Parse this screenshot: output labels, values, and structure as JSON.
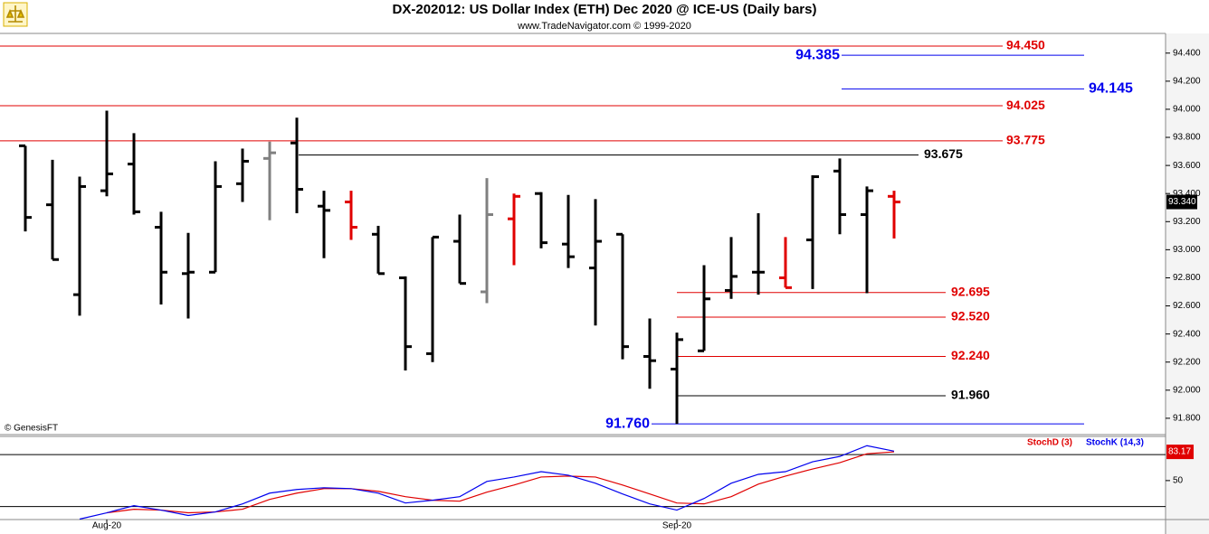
{
  "header": {
    "title": "DX-202012:  US Dollar Index (ETH) Dec 2020 @ ICE-US  (Daily bars)",
    "subtitle": "www.TradeNavigator.com © 1999-2020",
    "watermark": "© GenesisFT"
  },
  "chart_data": [
    {
      "type": "ohlc",
      "categories": [
        null,
        null,
        null,
        "Aug-20",
        null,
        null,
        null,
        null,
        null,
        null,
        null,
        null,
        null,
        null,
        null,
        null,
        null,
        null,
        null,
        null,
        null,
        null,
        null,
        null,
        "Sep-20",
        null,
        null,
        null,
        null,
        null,
        null,
        null,
        null
      ],
      "open": [
        93.74,
        93.32,
        92.68,
        93.42,
        93.61,
        93.16,
        92.83,
        92.84,
        93.47,
        93.65,
        93.76,
        93.31,
        93.34,
        93.11,
        92.8,
        92.26,
        93.06,
        92.7,
        93.22,
        93.4,
        93.04,
        92.87,
        93.11,
        92.24,
        92.15,
        92.28,
        92.71,
        92.84,
        92.8,
        93.07,
        93.56,
        93.25,
        93.38
      ],
      "high": [
        93.74,
        93.64,
        93.52,
        93.99,
        93.83,
        93.27,
        93.12,
        93.63,
        93.72,
        93.77,
        93.94,
        93.42,
        93.42,
        93.17,
        92.81,
        93.09,
        93.25,
        93.51,
        93.4,
        93.41,
        93.39,
        93.36,
        93.11,
        92.51,
        92.41,
        92.89,
        93.09,
        93.26,
        93.09,
        93.53,
        93.65,
        93.45,
        93.42
      ],
      "low": [
        93.13,
        92.93,
        92.53,
        93.38,
        93.25,
        92.61,
        92.51,
        92.84,
        93.34,
        93.21,
        93.26,
        92.94,
        93.07,
        92.83,
        92.14,
        92.2,
        92.76,
        92.62,
        92.89,
        93.01,
        92.87,
        92.46,
        92.22,
        92.01,
        91.76,
        92.28,
        92.65,
        92.68,
        92.73,
        92.72,
        93.11,
        92.69,
        93.08
      ],
      "close": [
        93.23,
        92.93,
        93.45,
        93.54,
        93.27,
        92.84,
        92.84,
        93.45,
        93.63,
        93.69,
        93.43,
        93.28,
        93.16,
        92.83,
        92.31,
        93.09,
        92.76,
        93.25,
        93.38,
        93.05,
        92.95,
        93.06,
        92.31,
        92.21,
        92.36,
        92.65,
        92.81,
        92.84,
        92.73,
        93.52,
        93.25,
        93.42,
        93.34
      ],
      "bar_colors": [
        "#000000",
        "#000000",
        "#000000",
        "#000000",
        "#000000",
        "#000000",
        "#000000",
        "#000000",
        "#000000",
        "#808080",
        "#000000",
        "#000000",
        "#e00000",
        "#000000",
        "#000000",
        "#000000",
        "#000000",
        "#808080",
        "#e00000",
        "#000000",
        "#000000",
        "#000000",
        "#000000",
        "#000000",
        "#000000",
        "#000000",
        "#000000",
        "#000000",
        "#e00000",
        "#000000",
        "#000000",
        "#000000",
        "#e00000"
      ],
      "ylim": [
        91.69,
        94.54
      ],
      "yticks": [
        {
          "value": 91.8,
          "label": "91.800"
        },
        {
          "value": 92.0,
          "label": "92.000"
        },
        {
          "value": 92.2,
          "label": "92.200"
        },
        {
          "value": 92.4,
          "label": "92.400"
        },
        {
          "value": 92.6,
          "label": "92.600"
        },
        {
          "value": 92.8,
          "label": "92.800"
        },
        {
          "value": 93.0,
          "label": "93.000"
        },
        {
          "value": 93.2,
          "label": "93.200"
        },
        {
          "value": 93.4,
          "label": "93.400"
        },
        {
          "value": 93.6,
          "label": "93.600"
        },
        {
          "value": 93.8,
          "label": "93.800"
        },
        {
          "value": 94.0,
          "label": "94.000"
        },
        {
          "value": 94.2,
          "label": "94.200"
        },
        {
          "value": 94.4,
          "label": "94.400"
        }
      ],
      "levels": [
        {
          "value": 94.45,
          "label": "94.450",
          "color": "#e00000"
        },
        {
          "value": 94.385,
          "label": "94.385",
          "color": "#0000ee"
        },
        {
          "value": 94.145,
          "label": "94.145",
          "color": "#0000ee"
        },
        {
          "value": 94.025,
          "label": "94.025",
          "color": "#e00000"
        },
        {
          "value": 93.775,
          "label": "93.775",
          "color": "#e00000"
        },
        {
          "value": 93.675,
          "label": "93.675",
          "color": "#000000"
        },
        {
          "value": 92.695,
          "label": "92.695",
          "color": "#e00000"
        },
        {
          "value": 92.52,
          "label": "92.520",
          "color": "#e00000"
        },
        {
          "value": 92.24,
          "label": "92.240",
          "color": "#e00000"
        },
        {
          "value": 91.96,
          "label": "91.960",
          "color": "#000000"
        },
        {
          "value": 91.76,
          "label": "91.760",
          "color": "#0000ee"
        }
      ],
      "last": {
        "value": 93.34,
        "label": "93.340"
      }
    },
    {
      "type": "line",
      "series": [
        {
          "name": "StochD (3)",
          "color": "#e00000",
          "values": [
            null,
            null,
            null,
            12.8,
            16.9,
            15.9,
            12.8,
            13.8,
            16.9,
            28.3,
            35.5,
            40.7,
            40.7,
            37.6,
            31.4,
            27.3,
            26.2,
            36.6,
            44.8,
            54.1,
            55.2,
            54.1,
            44.8,
            34.5,
            24.1,
            23.1,
            31.4,
            45.9,
            55.2,
            63.4,
            70.7,
            81.0,
            83.17
          ]
        },
        {
          "name": "StochK (14,3)",
          "color": "#0000ee",
          "values": [
            null,
            null,
            5.5,
            12.8,
            21.0,
            15.9,
            9.7,
            13.8,
            23.1,
            35.5,
            39.7,
            41.7,
            40.7,
            35.5,
            24.1,
            27.3,
            31.4,
            49.0,
            54.1,
            60.3,
            56.2,
            46.9,
            34.5,
            23.1,
            15.9,
            29.3,
            46.9,
            57.2,
            60.3,
            71.7,
            77.9,
            90.3,
            84.0
          ]
        }
      ],
      "ylim": [
        5,
        101
      ],
      "yticks": [
        50
      ],
      "levels": [
        20,
        80
      ],
      "last": {
        "value": 83.17,
        "label": "83.17"
      }
    }
  ]
}
